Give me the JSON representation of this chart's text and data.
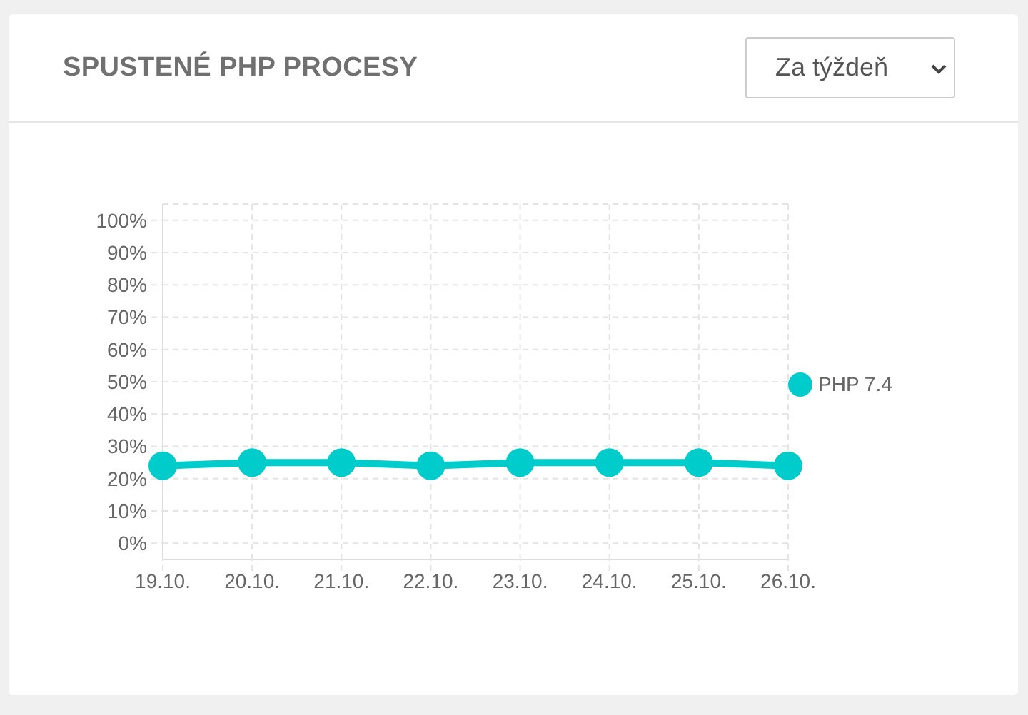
{
  "chart_data": {
    "type": "line",
    "title": "SPUSTENÉ PHP PROCESY",
    "annotations": [
      "Za týždeň"
    ],
    "categories": [
      "19.10.",
      "20.10.",
      "21.10.",
      "22.10.",
      "23.10.",
      "24.10.",
      "25.10.",
      "26.10."
    ],
    "series": [
      {
        "name": "PHP 7.4",
        "color": "#00cccc",
        "values": [
          24,
          25,
          25,
          24,
          25,
          25,
          25,
          24
        ]
      }
    ],
    "ylim": [
      -5,
      105
    ],
    "yticks": [
      {
        "value": 0,
        "label": "0%"
      },
      {
        "value": 10,
        "label": "10%"
      },
      {
        "value": 20,
        "label": "20%"
      },
      {
        "value": 30,
        "label": "30%"
      },
      {
        "value": 40,
        "label": "40%"
      },
      {
        "value": 50,
        "label": "50%"
      },
      {
        "value": 60,
        "label": "60%"
      },
      {
        "value": 70,
        "label": "70%"
      },
      {
        "value": 80,
        "label": "80%"
      },
      {
        "value": 90,
        "label": "90%"
      },
      {
        "value": 100,
        "label": "100%"
      }
    ],
    "grid": true,
    "legend": "right",
    "marker": "circle",
    "line_style": "solid"
  }
}
